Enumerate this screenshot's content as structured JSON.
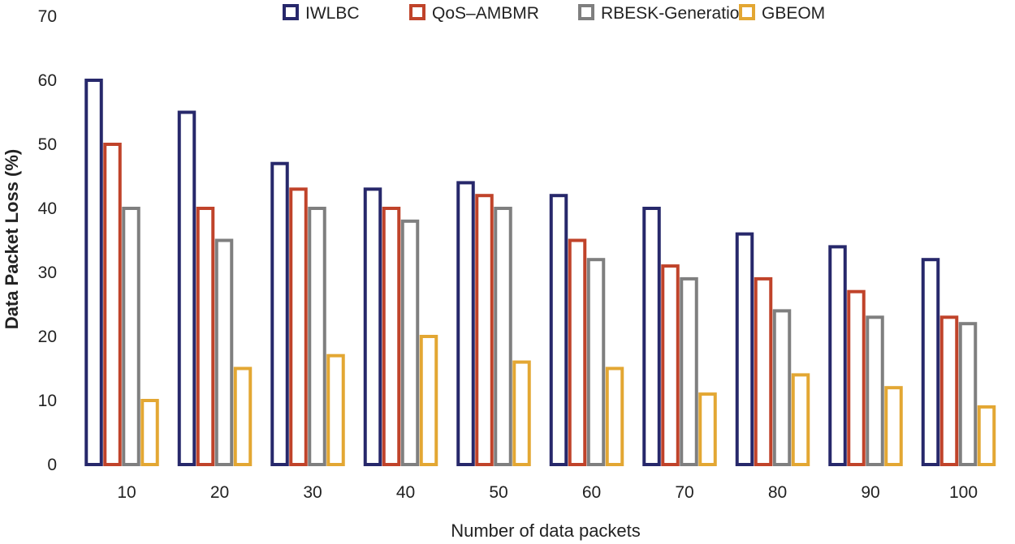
{
  "chart_data": {
    "type": "bar",
    "title": "",
    "xlabel": "Number of data packets",
    "ylabel": "Data Packet Loss (%)",
    "ylim": [
      0,
      70
    ],
    "yticks": [
      0,
      10,
      20,
      30,
      40,
      50,
      60,
      70
    ],
    "categories": [
      "10",
      "20",
      "30",
      "40",
      "50",
      "60",
      "70",
      "80",
      "90",
      "100"
    ],
    "series": [
      {
        "name": "IWLBC",
        "color": "#27286b",
        "values": [
          60,
          55,
          47,
          43,
          44,
          42,
          40,
          36,
          34,
          32
        ]
      },
      {
        "name": "QoS–AMBMR",
        "color": "#c0432a",
        "values": [
          50,
          40,
          43,
          40,
          42,
          35,
          31,
          29,
          27,
          23
        ]
      },
      {
        "name": "RBESK-Generation",
        "color": "#7f7f7f",
        "values": [
          40,
          35,
          40,
          38,
          40,
          32,
          29,
          24,
          23,
          22
        ]
      },
      {
        "name": "GBEOM",
        "color": "#e3a733",
        "values": [
          10,
          15,
          17,
          20,
          16,
          15,
          11,
          14,
          12,
          9
        ]
      }
    ],
    "grid": false,
    "legend_position": "top"
  }
}
